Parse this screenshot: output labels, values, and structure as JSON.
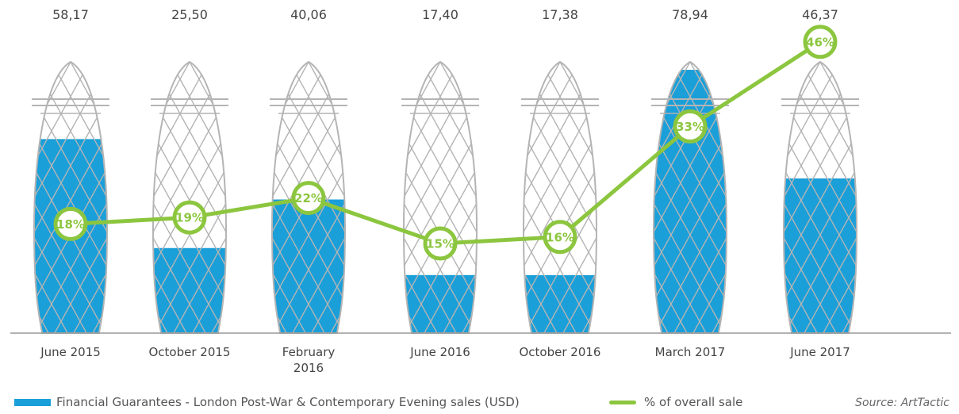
{
  "chart_data": {
    "type": "bar",
    "categories": [
      "June 2015",
      "October 2015",
      "February\n2016",
      "June 2016",
      "October 2016",
      "March 2017",
      "June 2017"
    ],
    "series": [
      {
        "name": "Financial Guarantees - London Post-War & Contemporary Evening sales (USD)",
        "type": "bar",
        "values": [
          58.17,
          25.5,
          40.06,
          17.4,
          17.38,
          78.94,
          46.37
        ],
        "labels": [
          "58,17",
          "25,50",
          "40,06",
          "17,40",
          "17,38",
          "78,94",
          "46,37"
        ]
      },
      {
        "name": "% of overall sale",
        "type": "line",
        "values": [
          18,
          19,
          22,
          15,
          16,
          33,
          46
        ],
        "labels": [
          "18%",
          "19%",
          "22%",
          "15%",
          "16%",
          "33%",
          "46%"
        ]
      }
    ],
    "bar_ylim": [
      0,
      78.94
    ],
    "line_ylim": [
      0,
      50
    ],
    "grid": false,
    "legend_position": "bottom"
  },
  "colors": {
    "bar": "#1a9fd9",
    "line": "#8cc63f",
    "mesh": "#b4b4b4",
    "axis": "#999999",
    "text": "#444444"
  },
  "legend": {
    "bar_label": "Financial Guarantees - London Post-War & Contemporary Evening sales (USD)",
    "line_label": "% of overall sale"
  },
  "source": "Source: ArtTactic"
}
